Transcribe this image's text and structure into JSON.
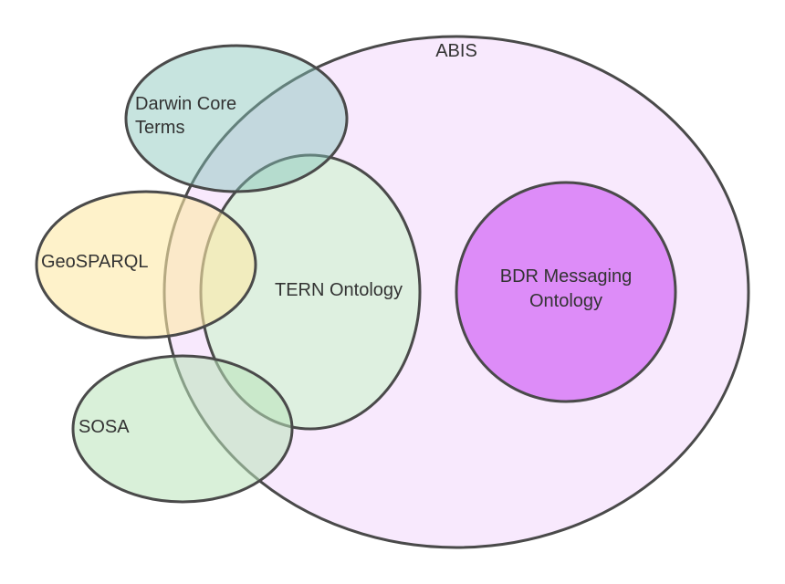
{
  "diagram": {
    "sets": {
      "abis": {
        "label": "ABIS",
        "fill": "#f8e9fd"
      },
      "tern": {
        "label": "TERN Ontology",
        "fill": "#c8f5c8"
      },
      "bdr": {
        "label_line1": "BDR Messaging",
        "label_line2": "Ontology",
        "fill": "#dd8cf8"
      },
      "darwin": {
        "label_line1": "Darwin Core",
        "label_line2": "Terms",
        "fill": "#82c4b8"
      },
      "geosparql": {
        "label": "GeoSPARQL",
        "fill": "#fde9a6"
      },
      "sosa": {
        "label": "SOSA",
        "fill": "#b9e4b9"
      },
      "stroke_color": "#4a4a4a"
    }
  }
}
